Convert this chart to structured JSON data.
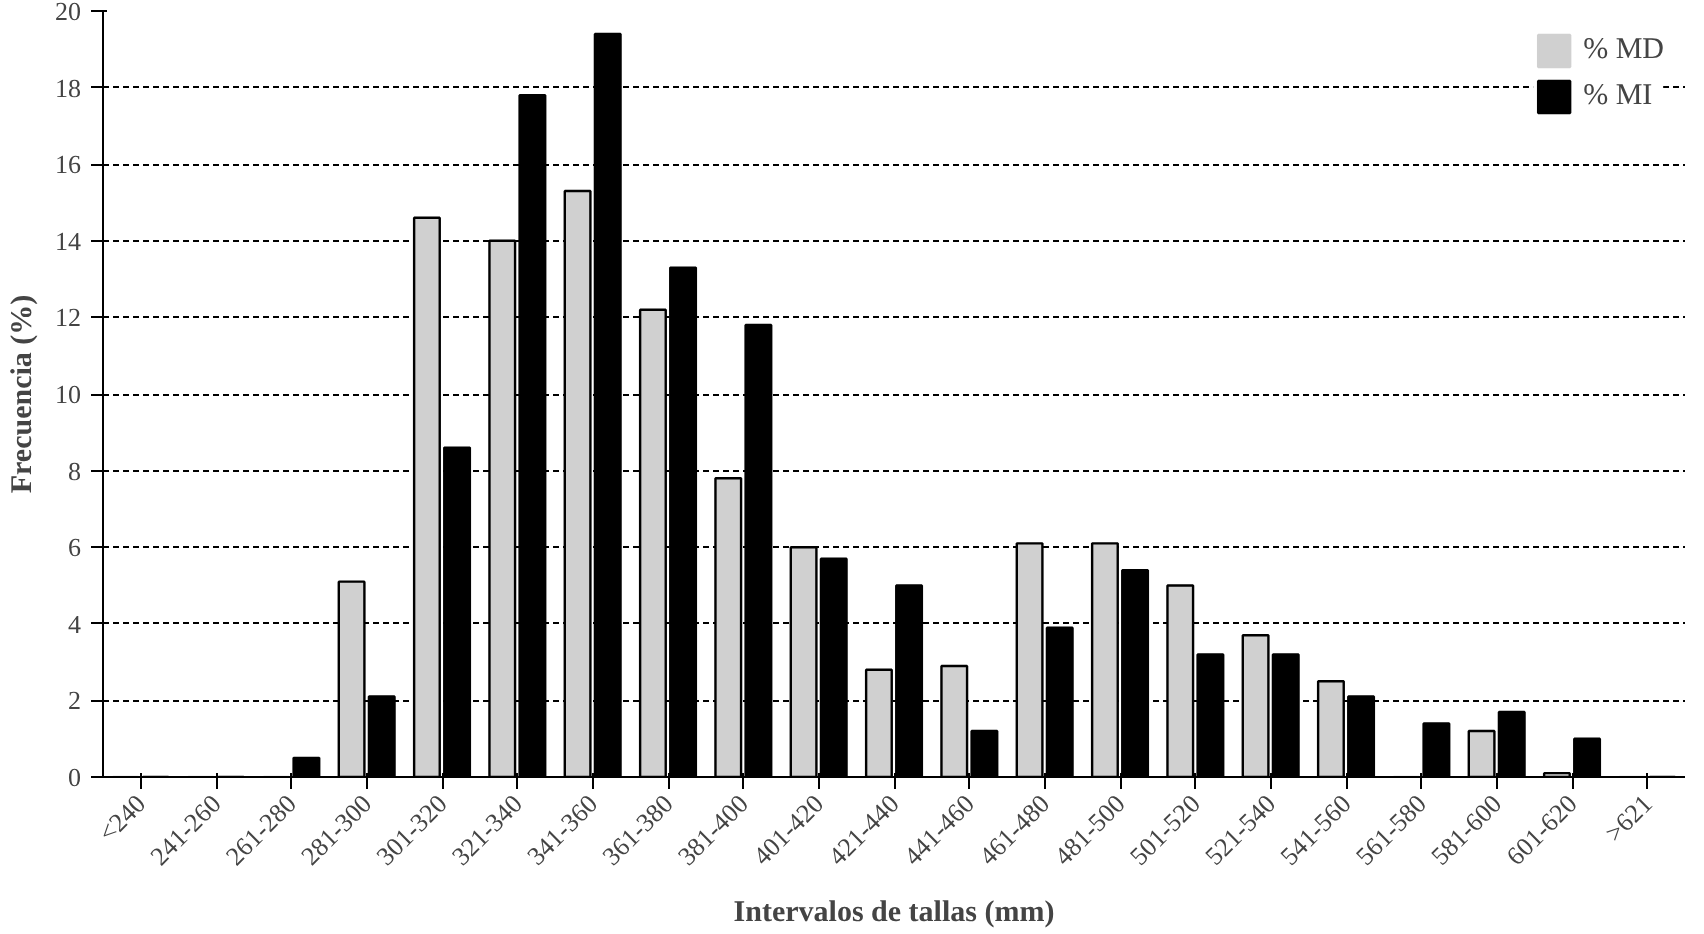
{
  "chart_data": {
    "type": "bar",
    "xlabel": "Intervalos de tallas (mm)",
    "ylabel": "Frecuencia (%)",
    "categories": [
      "<240",
      "241-260",
      "261-280",
      "281-300",
      "301-320",
      "321-340",
      "341-360",
      "361-380",
      "381-400",
      "401-420",
      "421-440",
      "441-460",
      "461-480",
      "481-500",
      "501-520",
      "521-540",
      "541-560",
      "561-580",
      "581-600",
      "601-620",
      ">621"
    ],
    "series": [
      {
        "name": "% MD",
        "color": "#d0d0d0",
        "values": [
          0,
          0,
          0,
          5.1,
          14.6,
          14.0,
          15.3,
          12.2,
          7.8,
          6.0,
          2.8,
          2.9,
          6.1,
          6.1,
          5.0,
          3.7,
          2.5,
          0,
          1.2,
          0.1,
          0
        ]
      },
      {
        "name": "% MI",
        "color": "#000000",
        "values": [
          0,
          0,
          0.5,
          2.1,
          8.6,
          17.8,
          19.4,
          13.3,
          11.8,
          5.7,
          5.0,
          1.2,
          3.9,
          5.4,
          3.2,
          3.2,
          2.1,
          1.4,
          1.7,
          1.0,
          0
        ]
      }
    ],
    "ylim": [
      0,
      20
    ],
    "yticks": [
      0,
      2,
      4,
      6,
      8,
      10,
      12,
      14,
      16,
      18,
      20
    ],
    "grid": "y",
    "legend": "top right"
  }
}
